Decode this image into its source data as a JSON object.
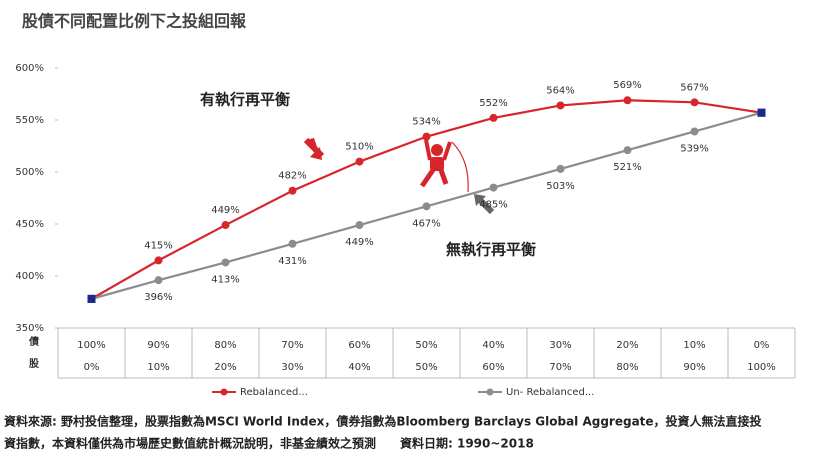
{
  "chart_data": {
    "type": "line",
    "title": "股債不同配置比例下之投組回報",
    "categories": [
      "100%",
      "90%",
      "80%",
      "70%",
      "60%",
      "50%",
      "40%",
      "30%",
      "20%",
      "10%",
      "0%"
    ],
    "categories_stock": [
      "0%",
      "10%",
      "20%",
      "30%",
      "40%",
      "50%",
      "60%",
      "70%",
      "80%",
      "90%",
      "100%"
    ],
    "category_row_labels": [
      "債",
      "股"
    ],
    "series": [
      {
        "name": "Rebalanced...",
        "color": "#d7262b",
        "values": [
          378,
          415,
          449,
          482,
          510,
          534,
          552,
          564,
          569,
          567,
          557
        ],
        "value_labels": [
          null,
          "415%",
          "449%",
          "482%",
          "510%",
          "534%",
          "552%",
          "564%",
          "569%",
          "567%",
          null
        ]
      },
      {
        "name": "Un- Rebalanced...",
        "color": "#8c8c8c",
        "values": [
          378,
          396,
          413,
          431,
          449,
          467,
          485,
          503,
          521,
          539,
          557
        ],
        "value_labels": [
          null,
          "396%",
          "413%",
          "431%",
          "449%",
          "467%",
          "485%",
          "503%",
          "521%",
          "539%",
          null
        ]
      }
    ],
    "endpoint_color": "#1a2a8c",
    "ylim": [
      350,
      600
    ],
    "yticks": [
      {
        "value": 350,
        "label": "350%"
      },
      {
        "value": 400,
        "label": "400%"
      },
      {
        "value": 450,
        "label": "450%"
      },
      {
        "value": 500,
        "label": "500%"
      },
      {
        "value": 550,
        "label": "550%"
      },
      {
        "value": 600,
        "label": "600%"
      }
    ],
    "annotations": [
      "有執行再平衡",
      "無執行再平衡"
    ],
    "notes": [
      "資料來源: 野村投信整理，股票指數為MSCI World Index，債券指數為Bloomberg Barclays Global Aggregate，投資人無法直接投",
      "資指數，本資料僅供為市場歷史數值統計概況說明，非基金績效之預測　　資料日期: 1990~2018"
    ]
  }
}
